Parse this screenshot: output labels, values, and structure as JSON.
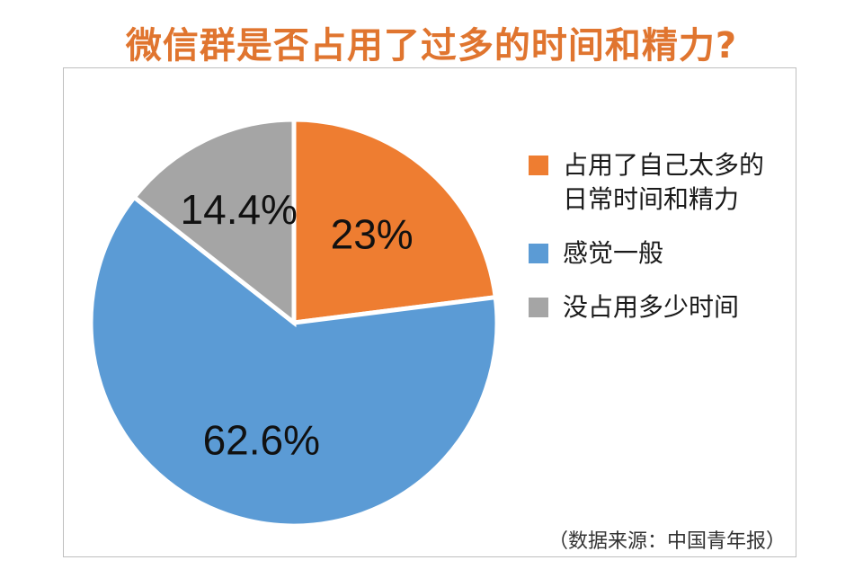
{
  "chart_data": {
    "type": "pie",
    "title": "微信群是否占用了过多的时间和精力?",
    "slices": [
      {
        "label": "占用了自己太多的日常时间和精力",
        "value": 23,
        "display": "23%",
        "color": "#ee7d31"
      },
      {
        "label": "感觉一般",
        "value": 62.6,
        "display": "62.6%",
        "color": "#5b9bd5"
      },
      {
        "label": "没占用多少时间",
        "value": 14.4,
        "display": "14.4%",
        "color": "#a5a5a5"
      }
    ],
    "legend_position": "right",
    "source": "（数据来源：中国青年报）"
  },
  "legend": {
    "items": [
      {
        "label": "占用了自己太多的日常时间和精力"
      },
      {
        "label": "感觉一般"
      },
      {
        "label": "没占用多少时间"
      }
    ]
  }
}
